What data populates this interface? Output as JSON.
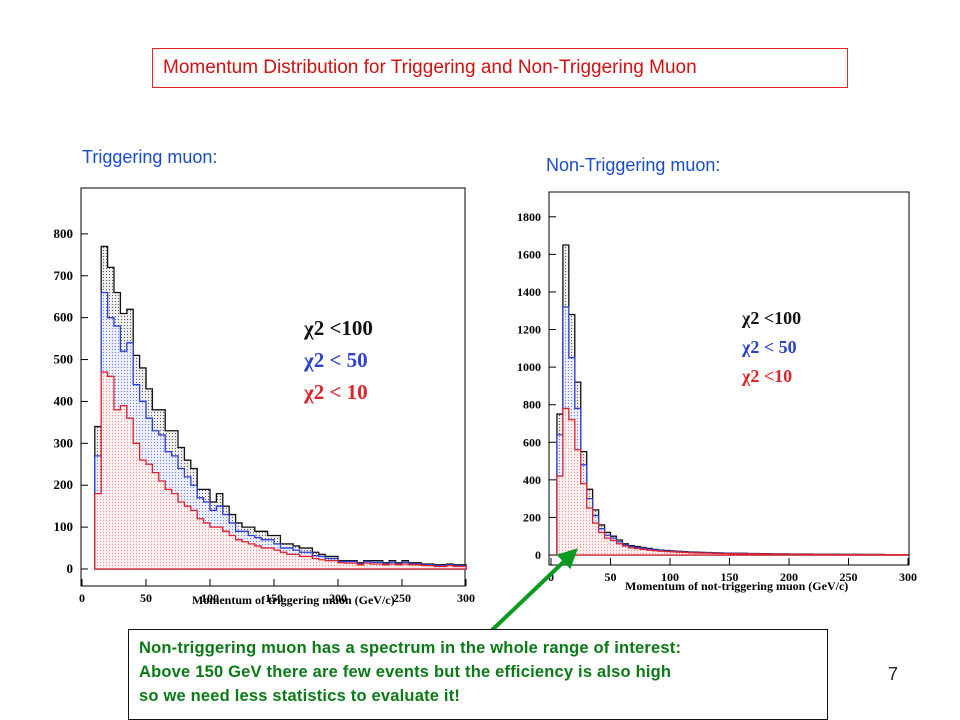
{
  "slide": {
    "title": "Momentum Distribution for Triggering and Non-Triggering Muon",
    "left_heading": "Triggering muon:",
    "right_heading": "Non-Triggering muon:",
    "note_lines": [
      "Non-triggering muon has a spectrum in the whole range of interest:",
      "Above 150 GeV there are few events but the efficiency is also high",
      "so we need less statistics to evaluate it!"
    ],
    "page_number": "7"
  },
  "colors": {
    "title": "#d01010",
    "heading": "#1a4bc8",
    "note": "#0a7a16",
    "arrow": "#0a9a20",
    "chi100": "#111111",
    "chi50": "#2d3fd0",
    "chi10": "#e0222b"
  },
  "chart_data": [
    {
      "type": "histogram",
      "xlabel": "Momentum of triggering muon (GeV/c)",
      "xlim": [
        0,
        300
      ],
      "ylim": [
        0,
        900
      ],
      "xticks": [
        "0",
        "50",
        "100",
        "150",
        "200",
        "250",
        "300"
      ],
      "yticks": [
        "0",
        "100",
        "200",
        "300",
        "400",
        "500",
        "600",
        "700",
        "800"
      ],
      "bin_width": 5,
      "x_start": 10,
      "legend": [
        "χ2  <100",
        "χ2  < 50",
        "χ2  < 10"
      ],
      "series": [
        {
          "name": "χ2  <100",
          "values": [
            340,
            770,
            720,
            660,
            610,
            620,
            510,
            480,
            430,
            380,
            380,
            330,
            330,
            290,
            260,
            240,
            190,
            190,
            160,
            180,
            150,
            130,
            110,
            100,
            100,
            90,
            90,
            80,
            80,
            60,
            60,
            55,
            50,
            50,
            40,
            35,
            30,
            30,
            20,
            20,
            20,
            15,
            20,
            20,
            20,
            15,
            20,
            15,
            20,
            15,
            15,
            12,
            12,
            10,
            10,
            12,
            10,
            10
          ]
        },
        {
          "name": "χ2  < 50",
          "values": [
            270,
            660,
            600,
            580,
            520,
            540,
            440,
            400,
            360,
            330,
            320,
            280,
            270,
            240,
            220,
            200,
            170,
            160,
            140,
            150,
            130,
            110,
            90,
            90,
            80,
            75,
            70,
            70,
            60,
            50,
            50,
            45,
            40,
            40,
            32,
            30,
            25,
            25,
            18,
            18,
            18,
            12,
            18,
            16,
            16,
            12,
            16,
            12,
            16,
            12,
            12,
            10,
            10,
            8,
            8,
            10,
            8,
            8
          ]
        },
        {
          "name": "χ2  < 10",
          "values": [
            180,
            470,
            460,
            380,
            390,
            360,
            300,
            260,
            250,
            230,
            210,
            190,
            180,
            160,
            150,
            140,
            120,
            110,
            100,
            100,
            90,
            80,
            70,
            65,
            60,
            55,
            50,
            50,
            45,
            40,
            35,
            35,
            30,
            30,
            25,
            22,
            20,
            20,
            15,
            14,
            14,
            10,
            14,
            12,
            12,
            10,
            12,
            10,
            12,
            10,
            10,
            8,
            8,
            6,
            6,
            8,
            6,
            6
          ]
        }
      ]
    },
    {
      "type": "histogram",
      "xlabel": "Momentum of  not-triggering muon (GeV/c)",
      "xlim": [
        0,
        300
      ],
      "ylim": [
        0,
        1900
      ],
      "xticks": [
        "0",
        "50",
        "100",
        "150",
        "200",
        "250",
        "300"
      ],
      "yticks": [
        "0",
        "200",
        "400",
        "600",
        "800",
        "1000",
        "1200",
        "1400",
        "1600",
        "1800"
      ],
      "bin_width": 5,
      "x_start": 5,
      "legend": [
        "χ2  <100",
        "χ2  < 50",
        "χ2  <10"
      ],
      "series": [
        {
          "name": "χ2  <100",
          "values": [
            750,
            1650,
            1280,
            920,
            550,
            350,
            240,
            160,
            120,
            100,
            80,
            60,
            50,
            45,
            40,
            35,
            30,
            26,
            24,
            22,
            20,
            18,
            16,
            15,
            14,
            13,
            12,
            11,
            10,
            10,
            9,
            9,
            8,
            8,
            7,
            7,
            6,
            6,
            6,
            5,
            5,
            5,
            5,
            4,
            4,
            4,
            4,
            4,
            3,
            3,
            3,
            3,
            3,
            3,
            3,
            2,
            2,
            2,
            2
          ]
        },
        {
          "name": "χ2  < 50",
          "values": [
            640,
            1320,
            1050,
            780,
            480,
            300,
            210,
            140,
            105,
            90,
            70,
            54,
            44,
            40,
            36,
            31,
            27,
            23,
            21,
            20,
            18,
            16,
            14,
            13,
            12,
            12,
            11,
            10,
            9,
            9,
            8,
            8,
            7,
            7,
            6,
            6,
            5,
            5,
            5,
            4,
            4,
            4,
            4,
            4,
            4,
            3,
            3,
            3,
            3,
            3,
            3,
            2,
            2,
            2,
            2,
            2,
            2,
            2,
            2
          ]
        },
        {
          "name": "χ2  <10",
          "values": [
            420,
            780,
            720,
            560,
            380,
            250,
            170,
            120,
            90,
            78,
            60,
            48,
            38,
            34,
            30,
            26,
            23,
            20,
            18,
            17,
            15,
            14,
            12,
            11,
            10,
            10,
            9,
            8,
            8,
            7,
            7,
            6,
            6,
            6,
            5,
            5,
            4,
            4,
            4,
            4,
            3,
            3,
            3,
            3,
            3,
            3,
            2,
            2,
            2,
            2,
            2,
            2,
            2,
            2,
            2,
            2,
            2,
            2,
            2
          ]
        }
      ]
    }
  ]
}
